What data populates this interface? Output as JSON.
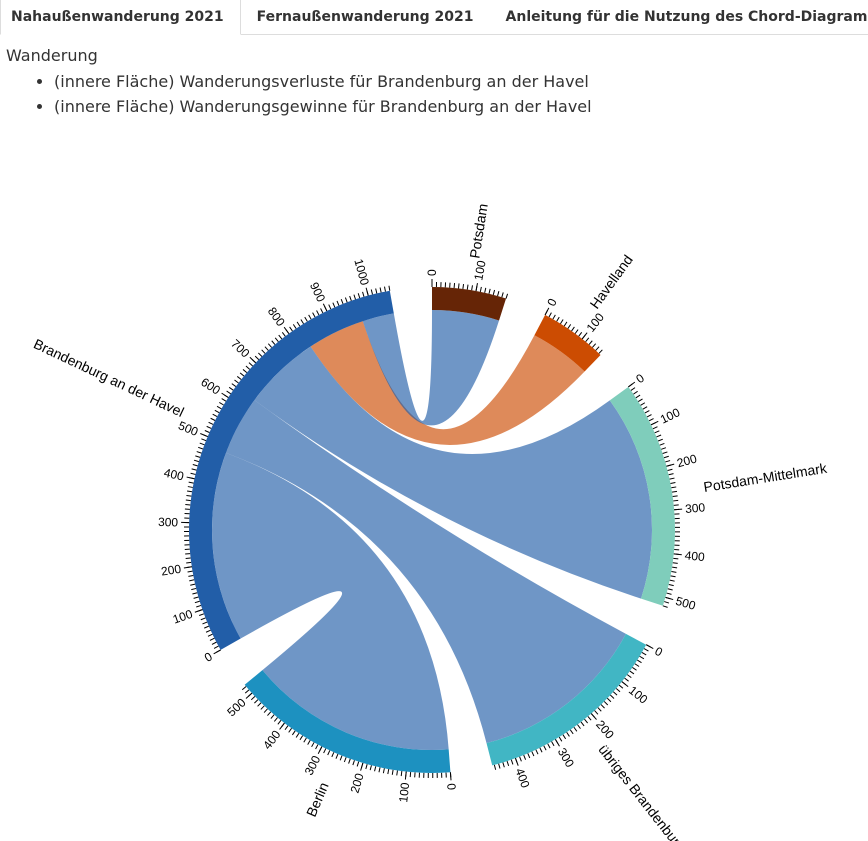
{
  "tabs": [
    "Nahaußenwanderung 2021",
    "Fernaußenwanderung 2021",
    "Anleitung für die Nutzung des Chord-Diagramm"
  ],
  "active_tab": 0,
  "legend": {
    "title": "Wanderung",
    "items": [
      "(innere Fläche) Wanderungsverluste für Brandenburg an der Havel",
      "(innere Fläche) Wanderungsgewinne für Brandenburg an der Havel"
    ]
  },
  "chart_data": {
    "type": "chord",
    "minor_tick_step": 10,
    "groups": [
      {
        "name": "Potsdam",
        "color": "#662506",
        "ticks": [
          0,
          100
        ]
      },
      {
        "name": "Havelland",
        "color": "#cc4c02",
        "ticks": [
          0,
          100
        ]
      },
      {
        "name": "Potsdam-Mittelmark",
        "color": "#7fcdbb",
        "ticks": [
          0,
          100,
          200,
          300,
          400,
          500
        ]
      },
      {
        "name": "übriges Brandenburg",
        "color": "#41b6c4",
        "ticks": [
          0,
          100,
          200,
          300,
          400
        ]
      },
      {
        "name": "Berlin",
        "color": "#1d91c0",
        "ticks": [
          0,
          100,
          200,
          300,
          400,
          500
        ]
      },
      {
        "name": "Brandenburg an der Havel",
        "color": "#225ea8",
        "ticks": [
          0,
          100,
          200,
          300,
          400,
          500,
          600,
          700,
          800,
          900,
          1000
        ],
        "flows": [
          {
            "target": 4,
            "outflow": 480,
            "inflow": 525,
            "color": "#225ea8"
          },
          {
            "target": 3,
            "outflow": 150,
            "inflow": 455,
            "color": "#225ea8"
          },
          {
            "target": 2,
            "outflow": 195,
            "inflow": 520,
            "color": "#225ea8"
          },
          {
            "target": 1,
            "outflow": 145,
            "inflow": 155,
            "color": "#cc4c02"
          },
          {
            "target": 0,
            "outflow": 80,
            "inflow": 170,
            "color": "#225ea8"
          }
        ]
      }
    ]
  }
}
